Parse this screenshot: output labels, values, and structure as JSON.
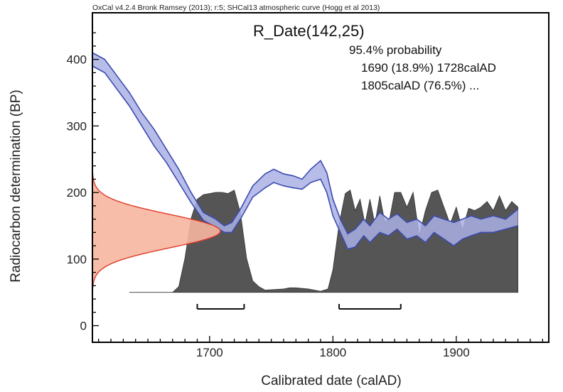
{
  "chart_data": {
    "type": "area",
    "header": "OxCal v4.2.4 Bronk Ramsey (2013); r:5; SHCal13 atmospheric curve (Hogg et al 2013)",
    "sample_title": "R_Date(142,25)",
    "annotations": [
      "95.4% probability",
      "1690 (18.9%) 1728calAD",
      "1805calAD (76.5%) ..."
    ],
    "xlabel": "Calibrated date (calAD)",
    "ylabel": "Radiocarbon determination (BP)",
    "xlim": [
      1605,
      1975
    ],
    "ylim": [
      -25,
      470
    ],
    "xticks": [
      1700,
      1800,
      1900
    ],
    "yticks": [
      0,
      100,
      200,
      300,
      400
    ],
    "colors": {
      "calibration_fill": "#aab0e4",
      "calibration_line": "#3b4bb0",
      "posterior_fill": "#555555",
      "measurement_fill": "#f6b6a0",
      "measurement_line": "#e03a28",
      "range_bar": "#111111"
    },
    "calibration_curve": {
      "x": [
        1605,
        1615,
        1625,
        1635,
        1645,
        1655,
        1665,
        1675,
        1685,
        1695,
        1705,
        1712,
        1718,
        1725,
        1735,
        1745,
        1752,
        1760,
        1768,
        1775,
        1782,
        1790,
        1795,
        1800,
        1806,
        1812,
        1818,
        1825,
        1830,
        1838,
        1845,
        1852,
        1860,
        1868,
        1875,
        1882,
        1890,
        1898,
        1905,
        1912,
        1920,
        1930,
        1940,
        1950
      ],
      "upper": [
        410,
        400,
        375,
        350,
        320,
        295,
        265,
        235,
        200,
        170,
        160,
        150,
        155,
        175,
        210,
        228,
        235,
        228,
        225,
        220,
        235,
        248,
        230,
        190,
        160,
        138,
        145,
        160,
        150,
        170,
        160,
        168,
        155,
        160,
        150,
        165,
        160,
        155,
        160,
        165,
        160,
        165,
        160,
        175
      ],
      "lower": [
        390,
        380,
        355,
        330,
        300,
        270,
        245,
        215,
        185,
        158,
        148,
        140,
        140,
        160,
        193,
        207,
        215,
        210,
        207,
        205,
        215,
        220,
        200,
        165,
        140,
        115,
        118,
        135,
        125,
        140,
        135,
        145,
        130,
        135,
        125,
        140,
        130,
        120,
        130,
        135,
        140,
        140,
        145,
        150
      ]
    },
    "posterior_distribution": {
      "x": [
        1635,
        1670,
        1675,
        1680,
        1685,
        1690,
        1695,
        1700,
        1705,
        1710,
        1715,
        1720,
        1725,
        1730,
        1735,
        1740,
        1745,
        1760,
        1765,
        1770,
        1780,
        1785,
        1790,
        1796,
        1800,
        1805,
        1810,
        1814,
        1818,
        1822,
        1826,
        1830,
        1834,
        1838,
        1842,
        1846,
        1850,
        1855,
        1860,
        1865,
        1870,
        1875,
        1880,
        1885,
        1890,
        1895,
        1900,
        1905,
        1910,
        1915,
        1920,
        1925,
        1930,
        1935,
        1940,
        1945,
        1950
      ],
      "relative_probability": [
        0,
        0,
        0.05,
        0.3,
        0.65,
        0.82,
        0.86,
        0.87,
        0.88,
        0.88,
        0.87,
        0.9,
        0.7,
        0.3,
        0.1,
        0.05,
        0.02,
        0.03,
        0.04,
        0.04,
        0.03,
        0.02,
        0.01,
        0.03,
        0.2,
        0.6,
        0.87,
        0.9,
        0.72,
        0.82,
        0.6,
        0.82,
        0.6,
        0.85,
        0.62,
        0.65,
        0.88,
        0.88,
        0.75,
        0.88,
        0.5,
        0.72,
        0.88,
        0.9,
        0.75,
        0.6,
        0.75,
        0.55,
        0.74,
        0.72,
        0.75,
        0.8,
        0.72,
        0.85,
        0.72,
        0.8,
        0.75
      ]
    },
    "measurement_distribution": {
      "mean_bp": 142,
      "sigma_bp": 25
    },
    "ranges_95_4": [
      {
        "from": 1690,
        "to": 1728,
        "percent": "18.9%"
      },
      {
        "from": 1805,
        "to": 1855,
        "percent": "76.5%"
      }
    ]
  }
}
